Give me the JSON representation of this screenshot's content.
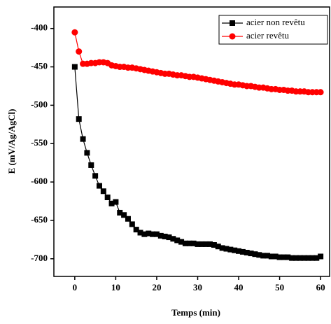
{
  "chart_data": {
    "type": "line",
    "xlabel": "Temps (min)",
    "ylabel": "E (mV/Ag/AgCl)",
    "x": [
      0,
      1,
      2,
      3,
      4,
      5,
      6,
      7,
      8,
      9,
      10,
      11,
      12,
      13,
      14,
      15,
      16,
      17,
      18,
      19,
      20,
      21,
      22,
      23,
      24,
      25,
      26,
      27,
      28,
      29,
      30,
      31,
      32,
      33,
      34,
      35,
      36,
      37,
      38,
      39,
      40,
      41,
      42,
      43,
      44,
      45,
      46,
      47,
      48,
      49,
      50,
      51,
      52,
      53,
      54,
      55,
      56,
      57,
      58,
      59,
      60
    ],
    "series": [
      {
        "name": "acier non revêtu",
        "color": "#000000",
        "marker": "square",
        "values": [
          -450,
          -518,
          -544,
          -562,
          -578,
          -592,
          -605,
          -612,
          -620,
          -628,
          -626,
          -640,
          -643,
          -648,
          -655,
          -662,
          -666,
          -668,
          -667,
          -668,
          -668,
          -670,
          -671,
          -672,
          -674,
          -676,
          -678,
          -680,
          -680,
          -680,
          -681,
          -681,
          -681,
          -681,
          -682,
          -684,
          -686,
          -687,
          -688,
          -689,
          -690,
          -691,
          -692,
          -693,
          -694,
          -695,
          -696,
          -696,
          -697,
          -697,
          -698,
          -698,
          -698,
          -699,
          -699,
          -699,
          -699,
          -699,
          -699,
          -699,
          -697
        ]
      },
      {
        "name": "acier revêtu",
        "color": "#ff0000",
        "marker": "circle",
        "values": [
          -405,
          -430,
          -446,
          -446,
          -445,
          -445,
          -444,
          -444,
          -445,
          -448,
          -449,
          -450,
          -450,
          -451,
          -451,
          -452,
          -453,
          -454,
          -455,
          -456,
          -457,
          -458,
          -459,
          -459,
          -460,
          -461,
          -461,
          -462,
          -463,
          -463,
          -464,
          -465,
          -466,
          -467,
          -468,
          -469,
          -470,
          -471,
          -472,
          -473,
          -473,
          -474,
          -475,
          -475,
          -476,
          -477,
          -477,
          -478,
          -479,
          -479,
          -480,
          -480,
          -481,
          -481,
          -482,
          -482,
          -482,
          -483,
          -483,
          -483,
          -483
        ]
      }
    ],
    "xlim": [
      -5.1,
      62.2
    ],
    "xticks": [
      0,
      10,
      20,
      30,
      40,
      50,
      60
    ],
    "ylim": [
      -723,
      -372
    ],
    "yticks": [
      -400,
      -450,
      -500,
      -550,
      -600,
      -650,
      -700
    ],
    "legend": "upper right"
  }
}
